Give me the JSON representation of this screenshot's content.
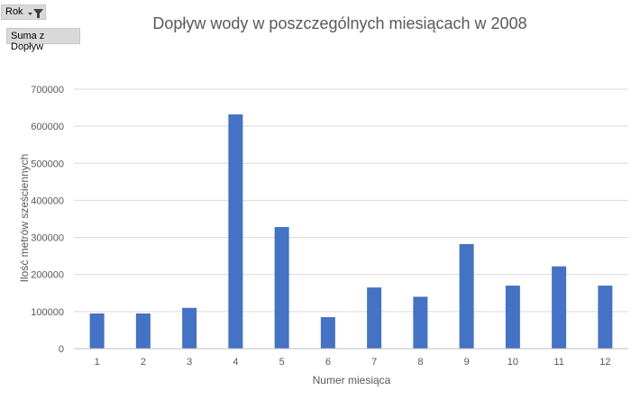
{
  "pivot": {
    "rok_label": "Rok",
    "suma_label": "Suma z Dopływ",
    "filter_icon": "filter-dropdown-icon"
  },
  "chart_data": {
    "type": "bar",
    "title": "Dopływ wody w poszczególnych miesiącach w 2008",
    "xlabel": "Numer miesiąca",
    "ylabel": "Ilość  metrów sześciennych",
    "categories": [
      "1",
      "2",
      "3",
      "4",
      "5",
      "6",
      "7",
      "8",
      "9",
      "10",
      "11",
      "12"
    ],
    "values": [
      95000,
      95000,
      110000,
      632000,
      328000,
      85000,
      165000,
      140000,
      282000,
      170000,
      222000,
      170000
    ],
    "ylim": [
      0,
      700000
    ],
    "yticks": [
      0,
      100000,
      200000,
      300000,
      400000,
      500000,
      600000,
      700000
    ],
    "ytick_labels": [
      "0",
      "100000",
      "200000",
      "300000",
      "400000",
      "500000",
      "600000",
      "700000"
    ],
    "grid": true,
    "legend": "none",
    "bar_color": "#4472c4"
  }
}
